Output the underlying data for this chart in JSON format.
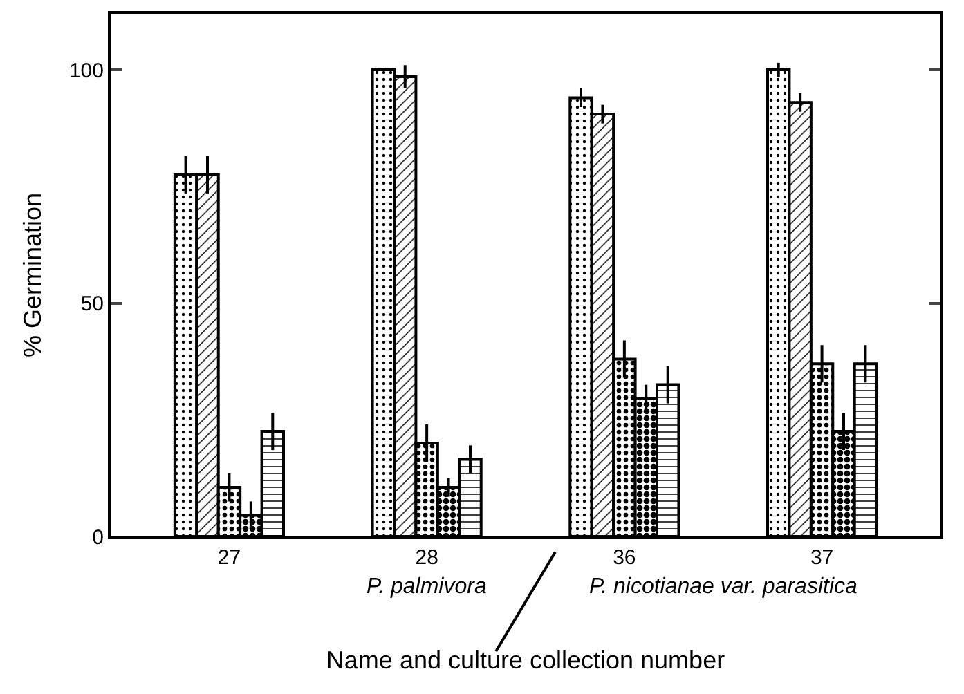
{
  "chart_data": {
    "type": "bar",
    "xlabel": "Name and culture collection number",
    "ylabel": "% Germination",
    "categories": [
      "27",
      "28",
      "36",
      "37"
    ],
    "series": [
      {
        "color": "#000000",
        "values": [
          77.5,
          100,
          94,
          100
        ],
        "errors": [
          4,
          null,
          2,
          1.5
        ]
      },
      {
        "color": "#000000",
        "values": [
          77.5,
          98.5,
          90.5,
          93
        ],
        "errors": [
          4,
          2.5,
          2,
          2
        ]
      },
      {
        "color": "#000000",
        "values": [
          10.5,
          20,
          38,
          37
        ],
        "errors": [
          3,
          4,
          4,
          4
        ]
      },
      {
        "color": "#000000",
        "values": [
          4.5,
          10.5,
          29.5,
          22.5
        ],
        "errors": [
          3,
          2,
          3,
          4
        ]
      },
      {
        "color": "#000000",
        "values": [
          22.5,
          16.5,
          32.5,
          37
        ],
        "errors": [
          4,
          3,
          4,
          4
        ]
      }
    ],
    "annotations": [
      "P. palmivora",
      "P. nicotianae var. parasitica"
    ],
    "ylim": [
      0,
      112
    ],
    "yticks": [
      0,
      50,
      100
    ]
  }
}
